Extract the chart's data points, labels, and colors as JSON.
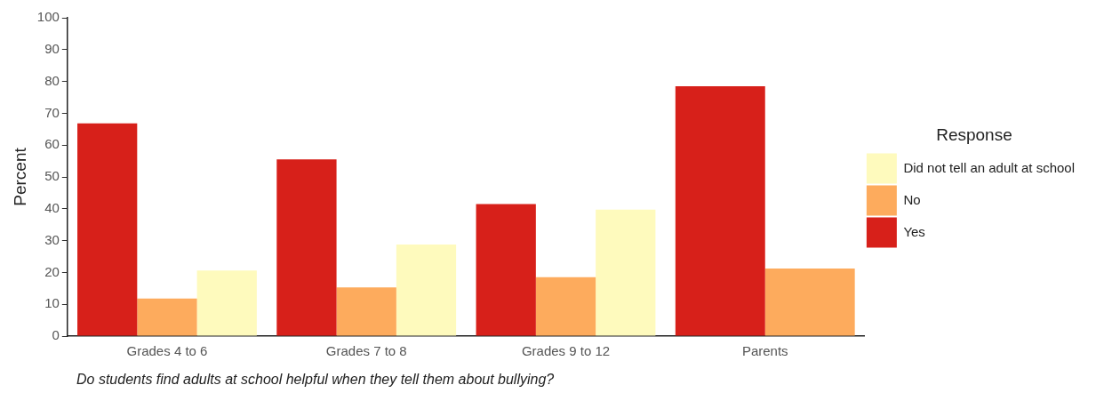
{
  "chart_data": {
    "type": "bar",
    "categories": [
      "Grades 4 to 6",
      "Grades 7 to 8",
      "Grades 9 to 12",
      "Parents"
    ],
    "ylabel": "Percent",
    "legend_title": "Response",
    "legend": "right",
    "series": [
      {
        "name": "Yes",
        "color": "#d7201a",
        "values": [
          66.8,
          55.5,
          41.5,
          78.5
        ]
      },
      {
        "name": "No",
        "color": "#fdab5d",
        "values": [
          11.8,
          15.3,
          18.5,
          21.2
        ]
      },
      {
        "name": "Did not tell an adult at school",
        "color": "#fefabd",
        "values": [
          20.6,
          28.8,
          39.7,
          null
        ]
      }
    ],
    "ylim": [
      0,
      100
    ],
    "yticks": [
      0,
      10,
      20,
      30,
      40,
      50,
      60,
      70,
      80,
      90,
      100
    ],
    "grid": false,
    "annotations": [
      "Do students find adults at school helpful when they tell them about bullying?"
    ]
  }
}
